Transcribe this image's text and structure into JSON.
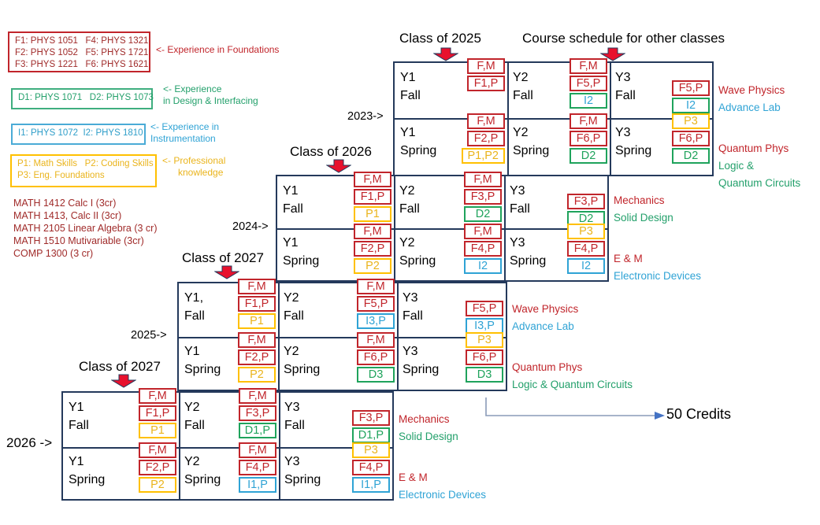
{
  "legend": {
    "foundations": {
      "lines": [
        "F1: PHYS 1051   F4: PHYS 1321",
        "F2: PHYS 1052   F5: PHYS 1721",
        "F3: PHYS 1221   F6: PHYS 1621"
      ],
      "caption_lines": [
        "<- Experience in Foundations"
      ]
    },
    "design": {
      "lines": [
        "D1: PHYS 1071   D2: PHYS 1073"
      ],
      "caption_lines": [
        "<- Experience",
        "in Design & Interfacing"
      ]
    },
    "instrumentation": {
      "lines": [
        "I1: PHYS 1072  I2: PHYS 1810"
      ],
      "caption_lines": [
        "<- Experience in",
        "Instrumentation"
      ]
    },
    "professional": {
      "lines": [
        "P1: Math Skills   P2: Coding Skills",
        "P3: Eng. Foundations"
      ],
      "caption_lines": [
        "<- Professional",
        "      knowledge"
      ]
    },
    "math_courses": [
      "MATH 1412 Calc I (3cr)",
      "MATH 1413, Calc II (3cr)",
      "MATH 2105 Linear Algebra (3 cr)",
      "MATH 1510 Mutivariable (3cr)",
      "COMP 1300 (3 cr)"
    ]
  },
  "headers": {
    "class_2025": "Class of 2025",
    "other_classes": "Course schedule for other classes",
    "class_2026": "Class of 2026",
    "class_2027_mid": "Class of 2027",
    "class_2027_bottom": "Class of 2027"
  },
  "year_markers": [
    "2023->",
    "2024->",
    "2025->",
    "2026 ->"
  ],
  "credits_label": "50 Credits",
  "blocks": [
    {
      "name": "class-of-2025",
      "cells": [
        {
          "row": 0,
          "col": 0,
          "label": "Y1\nFall",
          "chips": [
            {
              "t": "F,M",
              "c": "red"
            },
            {
              "t": "F1,P",
              "c": "red"
            }
          ]
        },
        {
          "row": 0,
          "col": 1,
          "label": "Y2\nFall",
          "chips": [
            {
              "t": "F,M",
              "c": "red"
            },
            {
              "t": "F5,P",
              "c": "red"
            },
            {
              "t": "I2",
              "c": "greenblue"
            }
          ]
        },
        {
          "row": 0,
          "col": 2,
          "label": "Y3\nFall",
          "chips": [
            {
              "t": "F5,P",
              "c": "red"
            },
            {
              "t": "I2",
              "c": "greenblue"
            }
          ]
        },
        {
          "row": 1,
          "col": 0,
          "label": "Y1\nSpring",
          "chips": [
            {
              "t": "F,M",
              "c": "red"
            },
            {
              "t": "F2,P",
              "c": "red"
            },
            {
              "t": "P1,P2",
              "c": "gold"
            }
          ]
        },
        {
          "row": 1,
          "col": 1,
          "label": "Y2\nSpring",
          "chips": [
            {
              "t": "F,M",
              "c": "red"
            },
            {
              "t": "F6,P",
              "c": "red"
            },
            {
              "t": "D2",
              "c": "green"
            }
          ]
        },
        {
          "row": 1,
          "col": 2,
          "label": "Y3\nSpring",
          "chips": [
            {
              "t": "P3",
              "c": "gold"
            },
            {
              "t": "F6,P",
              "c": "red"
            },
            {
              "t": "D2",
              "c": "green"
            }
          ]
        }
      ],
      "side_labels": [
        {
          "row": 0,
          "lines": [
            {
              "text": "Wave Physics",
              "color": "red"
            },
            {
              "text": "Advance Lab",
              "color": "blue"
            }
          ]
        },
        {
          "row": 1,
          "lines": [
            {
              "text": "Quantum Phys",
              "color": "red"
            },
            {
              "text": "Logic &",
              "color": "green"
            },
            {
              "text": "Quantum Circuits",
              "color": "green"
            }
          ]
        }
      ]
    },
    {
      "name": "class-of-2026",
      "cells": [
        {
          "row": 0,
          "col": 0,
          "label": "Y1\nFall",
          "chips": [
            {
              "t": "F,M",
              "c": "red"
            },
            {
              "t": "F1,P",
              "c": "red"
            },
            {
              "t": "P1",
              "c": "gold"
            }
          ]
        },
        {
          "row": 0,
          "col": 1,
          "label": "Y2\nFall",
          "chips": [
            {
              "t": "F,M",
              "c": "red"
            },
            {
              "t": "F3,P",
              "c": "red"
            },
            {
              "t": "D2",
              "c": "green"
            }
          ]
        },
        {
          "row": 0,
          "col": 2,
          "label": "Y3\nFall",
          "chips": [
            {
              "t": "F3,P",
              "c": "red"
            },
            {
              "t": "D2",
              "c": "green"
            }
          ]
        },
        {
          "row": 1,
          "col": 0,
          "label": "Y1\nSpring",
          "chips": [
            {
              "t": "F,M",
              "c": "red"
            },
            {
              "t": "F2,P",
              "c": "red"
            },
            {
              "t": "P2",
              "c": "gold"
            }
          ]
        },
        {
          "row": 1,
          "col": 1,
          "label": "Y2\nSpring",
          "chips": [
            {
              "t": "F,M",
              "c": "red"
            },
            {
              "t": "F4,P",
              "c": "red"
            },
            {
              "t": "I2",
              "c": "blue"
            }
          ]
        },
        {
          "row": 1,
          "col": 2,
          "label": "Y3\nSpring",
          "chips": [
            {
              "t": "P3",
              "c": "gold"
            },
            {
              "t": "F4,P",
              "c": "red"
            },
            {
              "t": "I2",
              "c": "blue"
            }
          ]
        }
      ],
      "side_labels": [
        {
          "row": 0,
          "lines": [
            {
              "text": "Mechanics",
              "color": "red"
            },
            {
              "text": "Solid Design",
              "color": "green"
            }
          ]
        },
        {
          "row": 1,
          "lines": [
            {
              "text": "E & M",
              "color": "red"
            },
            {
              "text": "Electronic Devices",
              "color": "blue"
            }
          ]
        }
      ]
    },
    {
      "name": "class-of-2027",
      "cells": [
        {
          "row": 0,
          "col": 0,
          "label": "Y1,\nFall",
          "chips": [
            {
              "t": "F,M",
              "c": "red"
            },
            {
              "t": "F1,P",
              "c": "red"
            },
            {
              "t": "P1",
              "c": "gold"
            }
          ]
        },
        {
          "row": 0,
          "col": 1,
          "label": "Y2\nFall",
          "chips": [
            {
              "t": "F,M",
              "c": "red"
            },
            {
              "t": "F5,P",
              "c": "red"
            },
            {
              "t": "I3,P",
              "c": "blue"
            }
          ]
        },
        {
          "row": 0,
          "col": 2,
          "label": "Y3\nFall",
          "chips": [
            {
              "t": "F5,P",
              "c": "red"
            },
            {
              "t": "I3,P",
              "c": "blue"
            }
          ]
        },
        {
          "row": 1,
          "col": 0,
          "label": "Y1\nSpring",
          "chips": [
            {
              "t": "F,M",
              "c": "red"
            },
            {
              "t": "F2,P",
              "c": "red"
            },
            {
              "t": "P2",
              "c": "gold"
            }
          ]
        },
        {
          "row": 1,
          "col": 1,
          "label": "Y2\nSpring",
          "chips": [
            {
              "t": "F,M",
              "c": "red"
            },
            {
              "t": "F6,P",
              "c": "red"
            },
            {
              "t": "D3",
              "c": "green"
            }
          ]
        },
        {
          "row": 1,
          "col": 2,
          "label": "Y3\nSpring",
          "chips": [
            {
              "t": "P3",
              "c": "gold"
            },
            {
              "t": "F6,P",
              "c": "red"
            },
            {
              "t": "D3",
              "c": "green"
            }
          ]
        }
      ],
      "side_labels": [
        {
          "row": 0,
          "lines": [
            {
              "text": "Wave Physics",
              "color": "red"
            },
            {
              "text": "Advance Lab",
              "color": "blue"
            }
          ]
        },
        {
          "row": 1,
          "lines": [
            {
              "text": "Quantum Phys",
              "color": "red"
            },
            {
              "text": "Logic & Quantum Circuits",
              "color": "green"
            }
          ]
        }
      ]
    },
    {
      "name": "class-of-2027-bottom",
      "cells": [
        {
          "row": 0,
          "col": 0,
          "label": "Y1\nFall",
          "chips": [
            {
              "t": "F,M",
              "c": "red"
            },
            {
              "t": "F1,P",
              "c": "red"
            },
            {
              "t": "P1",
              "c": "gold"
            }
          ]
        },
        {
          "row": 0,
          "col": 1,
          "label": "Y2\nFall",
          "chips": [
            {
              "t": "F,M",
              "c": "red"
            },
            {
              "t": "F3,P",
              "c": "red"
            },
            {
              "t": "D1,P",
              "c": "green"
            }
          ]
        },
        {
          "row": 0,
          "col": 2,
          "label": "Y3\nFall",
          "chips": [
            {
              "t": "F3,P",
              "c": "red"
            },
            {
              "t": "D1,P",
              "c": "green"
            }
          ]
        },
        {
          "row": 1,
          "col": 0,
          "label": "Y1\nSpring",
          "chips": [
            {
              "t": "F,M",
              "c": "red"
            },
            {
              "t": "F2,P",
              "c": "red"
            },
            {
              "t": "P2",
              "c": "gold"
            }
          ]
        },
        {
          "row": 1,
          "col": 1,
          "label": "Y2\nSpring",
          "chips": [
            {
              "t": "F,M",
              "c": "red"
            },
            {
              "t": "F4,P",
              "c": "red"
            },
            {
              "t": "I1,P",
              "c": "blue"
            }
          ]
        },
        {
          "row": 1,
          "col": 2,
          "label": "Y3\nSpring",
          "chips": [
            {
              "t": "P3",
              "c": "gold"
            },
            {
              "t": "F4,P",
              "c": "red"
            },
            {
              "t": "I1,P",
              "c": "blue"
            }
          ]
        }
      ],
      "side_labels": [
        {
          "row": 0,
          "lines": [
            {
              "text": "Mechanics",
              "color": "red"
            },
            {
              "text": "Solid Design",
              "color": "green"
            }
          ]
        },
        {
          "row": 1,
          "lines": [
            {
              "text": "E & M",
              "color": "red"
            },
            {
              "text": "Electronic Devices",
              "color": "blue"
            }
          ]
        }
      ]
    }
  ]
}
